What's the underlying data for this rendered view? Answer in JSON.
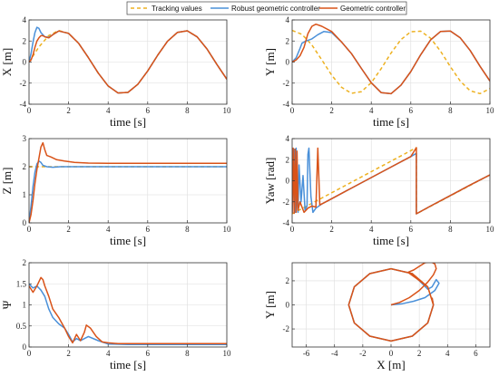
{
  "legend": {
    "items": [
      {
        "label": "Tracking values",
        "color": "#EDB120",
        "dash": true
      },
      {
        "label": "Robust geometric controller",
        "color": "#4A90D9",
        "dash": false
      },
      {
        "label": "Geometric controller",
        "color": "#D95319",
        "dash": false
      }
    ]
  },
  "colors": {
    "tracking": "#EDB120",
    "robust": "#4A90D9",
    "geometric": "#D95319"
  },
  "chart_data": [
    {
      "type": "line",
      "id": "x",
      "xlabel": "time [s]",
      "ylabel": "X [m]",
      "xlim": [
        0,
        10
      ],
      "ylim": [
        -4,
        4
      ],
      "xticks": [
        0,
        2,
        4,
        6,
        8,
        10
      ],
      "yticks": [
        -4,
        -2,
        0,
        2,
        4
      ],
      "grid": true,
      "series": [
        {
          "name": "Tracking values",
          "color": "#EDB120",
          "dash": true,
          "x": [
            0,
            0.5,
            1,
            1.5,
            2,
            2.5,
            3,
            3.5,
            4,
            4.5,
            5,
            5.5,
            6,
            6.5,
            7,
            7.5,
            8,
            8.5,
            9,
            9.5,
            10
          ],
          "y": [
            0,
            1.44,
            2.52,
            2.99,
            2.73,
            1.8,
            0.42,
            -1.05,
            -2.27,
            -2.93,
            -2.88,
            -2.12,
            -0.84,
            0.64,
            1.97,
            2.81,
            2.97,
            2.39,
            1.24,
            -0.23,
            -1.63
          ]
        },
        {
          "name": "Robust geometric controller",
          "color": "#4A90D9",
          "dash": false,
          "x": [
            0,
            0.1,
            0.2,
            0.3,
            0.4,
            0.5,
            0.6,
            0.8,
            1,
            1.2,
            1.5,
            2,
            2.5,
            3,
            3.5,
            4,
            4.5,
            5,
            5.5,
            6,
            6.5,
            7,
            7.5,
            8,
            8.5,
            9,
            9.5,
            10
          ],
          "y": [
            0,
            0.8,
            1.9,
            2.8,
            3.3,
            3.2,
            2.8,
            2.4,
            2.35,
            2.6,
            2.95,
            2.73,
            1.8,
            0.42,
            -1.05,
            -2.27,
            -2.93,
            -2.88,
            -2.12,
            -0.84,
            0.64,
            1.97,
            2.81,
            2.97,
            2.39,
            1.24,
            -0.23,
            -1.63
          ]
        },
        {
          "name": "Geometric controller",
          "color": "#D95319",
          "dash": false,
          "x": [
            0,
            0.1,
            0.2,
            0.3,
            0.4,
            0.5,
            0.6,
            0.7,
            0.8,
            1,
            1.2,
            1.5,
            2,
            2.5,
            3,
            3.5,
            4,
            4.5,
            5,
            5.5,
            6,
            6.5,
            7,
            7.5,
            8,
            8.5,
            9,
            9.5,
            10
          ],
          "y": [
            0,
            0.2,
            0.7,
            1.4,
            2.0,
            2.3,
            2.5,
            2.5,
            2.4,
            2.3,
            2.6,
            2.95,
            2.73,
            1.8,
            0.42,
            -1.05,
            -2.27,
            -2.93,
            -2.88,
            -2.12,
            -0.84,
            0.64,
            1.97,
            2.81,
            2.97,
            2.39,
            1.24,
            -0.23,
            -1.63
          ]
        }
      ]
    },
    {
      "type": "line",
      "id": "y",
      "xlabel": "time [s]",
      "ylabel": "Y [m]",
      "xlim": [
        0,
        10
      ],
      "ylim": [
        -4,
        4
      ],
      "xticks": [
        0,
        2,
        4,
        6,
        8,
        10
      ],
      "yticks": [
        -4,
        -2,
        0,
        2,
        4
      ],
      "grid": true,
      "series": [
        {
          "name": "Tracking values",
          "color": "#EDB120",
          "dash": true,
          "x": [
            0,
            0.5,
            1,
            1.5,
            2,
            2.5,
            3,
            3.5,
            4,
            4.5,
            5,
            5.5,
            6,
            6.5,
            7,
            7.5,
            8,
            8.5,
            9,
            9.5,
            10
          ],
          "y": [
            3,
            2.63,
            1.62,
            0.21,
            -1.25,
            -2.4,
            -2.97,
            -2.81,
            -1.96,
            -0.63,
            0.85,
            2.13,
            2.88,
            2.93,
            2.26,
            1.04,
            -0.44,
            -1.81,
            -2.73,
            -2.99,
            -2.52
          ]
        },
        {
          "name": "Robust geometric controller",
          "color": "#4A90D9",
          "dash": false,
          "x": [
            0,
            0.2,
            0.4,
            0.5,
            0.7,
            1,
            1.3,
            1.6,
            2,
            2.5,
            3,
            3.5,
            4,
            4.5,
            5,
            5.5,
            6,
            6.5,
            7,
            7.5,
            8,
            8.5,
            9,
            9.5,
            10
          ],
          "y": [
            0,
            0.4,
            1.3,
            1.8,
            2.0,
            2.2,
            2.6,
            2.9,
            2.8,
            1.9,
            0.8,
            -0.6,
            -1.96,
            -2.9,
            -3.0,
            -2.2,
            -0.9,
            0.7,
            2.1,
            2.9,
            2.95,
            2.3,
            1.1,
            -0.4,
            -1.8
          ]
        },
        {
          "name": "Geometric controller",
          "color": "#D95319",
          "dash": false,
          "x": [
            0,
            0.2,
            0.4,
            0.6,
            0.8,
            1,
            1.2,
            1.5,
            2,
            2.5,
            3,
            3.5,
            4,
            4.5,
            5,
            5.5,
            6,
            6.5,
            7,
            7.5,
            8,
            8.5,
            9,
            9.5,
            10
          ],
          "y": [
            0,
            0.2,
            0.6,
            1.4,
            2.7,
            3.4,
            3.6,
            3.4,
            2.9,
            1.9,
            0.8,
            -0.6,
            -1.96,
            -2.9,
            -3.0,
            -2.2,
            -0.9,
            0.7,
            2.1,
            2.9,
            2.95,
            2.3,
            1.1,
            -0.4,
            -1.8
          ]
        }
      ]
    },
    {
      "type": "line",
      "id": "z",
      "xlabel": "time [s]",
      "ylabel": "Z [m]",
      "xlim": [
        0,
        10
      ],
      "ylim": [
        0,
        3
      ],
      "xticks": [
        0,
        2,
        4,
        6,
        8,
        10
      ],
      "yticks": [
        0,
        1,
        2,
        3
      ],
      "grid": true,
      "series": [
        {
          "name": "Tracking values",
          "color": "#EDB120",
          "dash": true,
          "x": [
            0,
            10
          ],
          "y": [
            2,
            2
          ]
        },
        {
          "name": "Robust geometric controller",
          "color": "#4A90D9",
          "dash": false,
          "x": [
            0,
            0.1,
            0.2,
            0.3,
            0.4,
            0.5,
            0.6,
            0.7,
            0.9,
            1.2,
            1.6,
            2,
            3,
            10
          ],
          "y": [
            0,
            0.6,
            1.3,
            1.8,
            2.1,
            2.2,
            2.15,
            2.05,
            2.0,
            1.98,
            2.0,
            2.0,
            2.0,
            2.0
          ]
        },
        {
          "name": "Geometric controller",
          "color": "#D95319",
          "dash": false,
          "x": [
            0,
            0.1,
            0.2,
            0.3,
            0.4,
            0.5,
            0.6,
            0.7,
            0.8,
            0.9,
            1.1,
            1.4,
            1.8,
            2.3,
            3,
            4,
            10
          ],
          "y": [
            0,
            0.3,
            0.8,
            1.4,
            1.9,
            2.3,
            2.7,
            2.85,
            2.6,
            2.4,
            2.35,
            2.25,
            2.2,
            2.15,
            2.13,
            2.12,
            2.12
          ]
        }
      ]
    },
    {
      "type": "line",
      "id": "yaw",
      "xlabel": "time [s]",
      "ylabel": "Yaw [rad]",
      "xlim": [
        0,
        10
      ],
      "ylim": [
        -4,
        4
      ],
      "xticks": [
        0,
        2,
        4,
        6,
        8,
        10
      ],
      "yticks": [
        -4,
        -2,
        0,
        2,
        4
      ],
      "grid": true,
      "series": [
        {
          "name": "Tracking values",
          "color": "#EDB120",
          "dash": true,
          "x": [
            0,
            6.28,
            6.28,
            10
          ],
          "y": [
            -3.14,
            3.14,
            -3.14,
            0.56
          ]
        },
        {
          "name": "Robust geometric controller",
          "color": "#4A90D9",
          "dash": false,
          "x": [
            0,
            0.1,
            0.15,
            0.2,
            0.25,
            0.3,
            0.35,
            0.45,
            0.55,
            0.65,
            0.75,
            0.8,
            0.85,
            0.95,
            1.05,
            1.2,
            1.5,
            2,
            3,
            4,
            5,
            6,
            6.28,
            6.28,
            7,
            8,
            9,
            10
          ],
          "y": [
            -3.1,
            3.0,
            -3.0,
            3.1,
            -2.0,
            -3.0,
            1.5,
            -2.0,
            0.5,
            -2.8,
            -2.4,
            2.5,
            3.1,
            -1.5,
            -3.0,
            -2.6,
            -2.2,
            -1.7,
            -0.7,
            0.3,
            1.3,
            2.3,
            2.6,
            -3.14,
            -2.4,
            -1.4,
            -0.4,
            0.56
          ]
        },
        {
          "name": "Geometric controller",
          "color": "#D95319",
          "dash": false,
          "x": [
            0,
            0.05,
            0.1,
            0.15,
            0.2,
            0.25,
            0.3,
            0.4,
            0.5,
            0.6,
            0.7,
            0.8,
            1.0,
            1.2,
            1.3,
            1.4,
            1.6,
            2,
            3,
            4,
            5,
            6,
            6.28,
            6.28,
            7,
            8,
            9,
            10
          ],
          "y": [
            -3.1,
            3.1,
            -3.1,
            3.0,
            -3.0,
            2.8,
            -2.8,
            -2.0,
            -2.5,
            -3.0,
            -2.8,
            -2.6,
            -2.4,
            -2.5,
            3.1,
            -2.3,
            -2.1,
            -1.7,
            -0.7,
            0.3,
            1.3,
            2.3,
            3.14,
            -3.14,
            -2.4,
            -1.4,
            -0.4,
            0.56
          ]
        }
      ]
    },
    {
      "type": "line",
      "id": "psi",
      "xlabel": "time [s]",
      "ylabel": "Ψ",
      "xlim": [
        0,
        10
      ],
      "ylim": [
        0,
        2
      ],
      "xticks": [
        0,
        2,
        4,
        6,
        8,
        10
      ],
      "yticks": [
        0,
        0.5,
        1,
        1.5,
        2
      ],
      "grid": true,
      "series": [
        {
          "name": "Robust geometric controller",
          "color": "#4A90D9",
          "dash": false,
          "x": [
            0,
            0.2,
            0.4,
            0.6,
            0.8,
            1.0,
            1.2,
            1.5,
            1.8,
            2.0,
            2.2,
            2.4,
            2.6,
            2.8,
            3.0,
            3.5,
            4,
            5,
            10
          ],
          "y": [
            1.5,
            1.4,
            1.45,
            1.35,
            1.2,
            0.9,
            0.7,
            0.55,
            0.45,
            0.3,
            0.12,
            0.2,
            0.15,
            0.2,
            0.25,
            0.15,
            0.07,
            0.06,
            0.06
          ]
        },
        {
          "name": "Geometric controller",
          "color": "#D95319",
          "dash": false,
          "x": [
            0,
            0.2,
            0.4,
            0.6,
            0.7,
            0.8,
            1.0,
            1.2,
            1.5,
            1.8,
            2.0,
            2.2,
            2.4,
            2.6,
            2.8,
            2.9,
            3.1,
            3.4,
            3.7,
            4,
            4.5,
            5,
            10
          ],
          "y": [
            1.45,
            1.3,
            1.45,
            1.65,
            1.6,
            1.45,
            1.2,
            0.9,
            0.7,
            0.45,
            0.25,
            0.1,
            0.3,
            0.15,
            0.35,
            0.52,
            0.45,
            0.25,
            0.12,
            0.1,
            0.08,
            0.08,
            0.08
          ]
        }
      ]
    },
    {
      "type": "line",
      "id": "xy",
      "xlabel": "X [m]",
      "ylabel": "Y [m]",
      "xlim": [
        -7,
        7
      ],
      "ylim": [
        -3.5,
        3.5
      ],
      "xticks": [
        -6,
        -4,
        -2,
        0,
        2,
        4,
        6
      ],
      "yticks": [
        -2,
        0,
        2
      ],
      "grid": true,
      "series": [
        {
          "name": "Tracking values",
          "color": "#EDB120",
          "dash": true,
          "x": [
            0,
            1.5,
            2.6,
            3,
            2.6,
            1.5,
            0,
            -1.5,
            -2.6,
            -3,
            -2.6,
            -1.5,
            0
          ],
          "y": [
            3,
            2.6,
            1.5,
            0,
            -1.5,
            -2.6,
            -3,
            -2.6,
            -1.5,
            0,
            1.5,
            2.6,
            3
          ]
        },
        {
          "name": "Robust geometric controller",
          "color": "#4A90D9",
          "dash": false,
          "x": [
            0,
            0.8,
            1.6,
            2.4,
            3.1,
            3.4,
            3.2,
            2.9,
            2.6,
            1.5,
            0,
            -1.5,
            -2.6,
            -3,
            -2.6,
            -1.5,
            0,
            1.5,
            2.6,
            3,
            2.9
          ],
          "y": [
            0,
            0.1,
            0.3,
            0.6,
            1.2,
            1.8,
            2.1,
            1.5,
            1.3,
            2.6,
            3,
            2.6,
            1.5,
            0,
            -1.5,
            -2.6,
            -3,
            -2.6,
            -1.5,
            0,
            0.6
          ]
        },
        {
          "name": "Geometric controller",
          "color": "#D95319",
          "dash": false,
          "x": [
            0,
            0.6,
            1.3,
            2.0,
            2.6,
            3.0,
            3.2,
            3.1,
            2.8,
            2.4,
            2.0,
            1.6,
            1.2,
            1.8,
            2.6,
            3,
            2.6,
            1.5,
            0,
            -1.5,
            -2.6,
            -3,
            -2.6,
            -1.5,
            0,
            1.5,
            2.6,
            3,
            2.9
          ],
          "y": [
            0,
            0.2,
            0.6,
            1.2,
            1.9,
            2.5,
            3.0,
            3.4,
            3.6,
            3.5,
            3.2,
            2.9,
            2.7,
            2.2,
            1.5,
            0,
            -1.5,
            -2.6,
            -3,
            -2.6,
            -1.5,
            0,
            1.5,
            2.6,
            3,
            2.6,
            1.5,
            0,
            0.6
          ]
        }
      ]
    }
  ]
}
